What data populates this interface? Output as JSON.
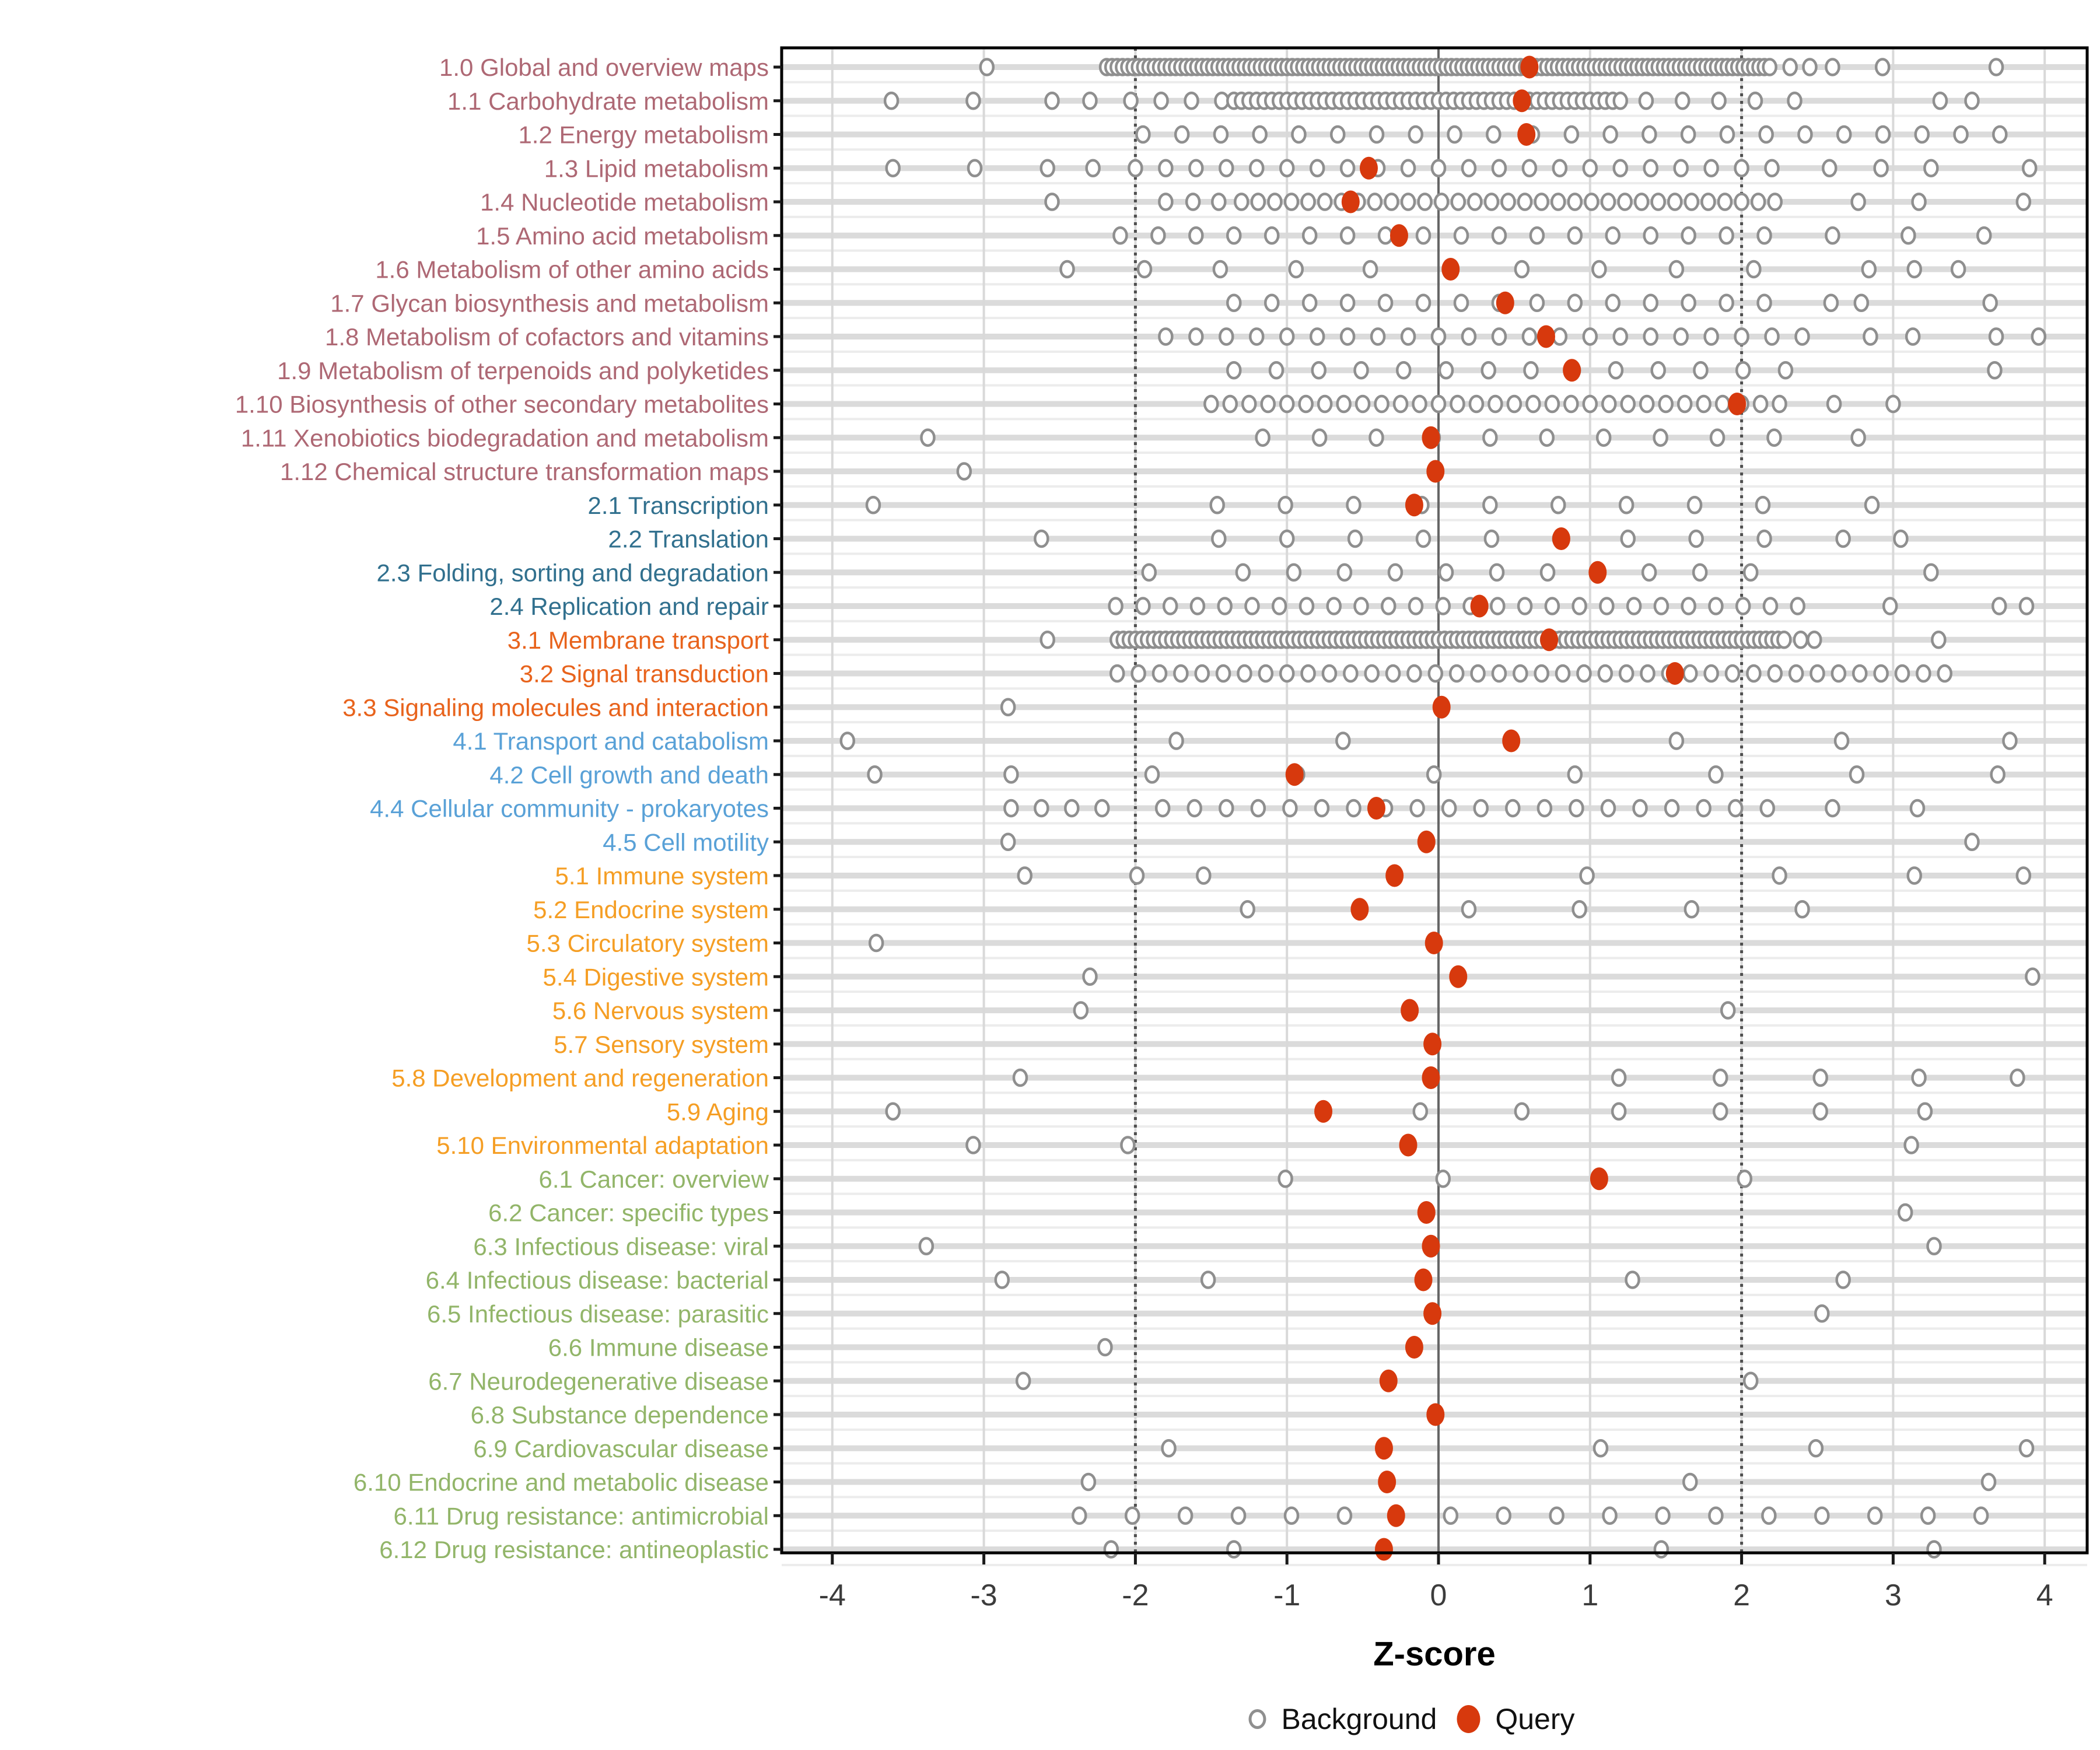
{
  "axis": {
    "xlabel": "Z-score"
  },
  "legend": {
    "background_label": "Background",
    "query_label": "Query",
    "background_color": "#8F8F8F",
    "query_color": "#D7390D"
  },
  "chart_data": {
    "type": "scatter",
    "title": "",
    "xlabel": "Z-score",
    "ylabel": "",
    "xlim": [
      -4.33,
      4.28
    ],
    "x_ticks": [
      -4,
      -3,
      -2,
      -1,
      0,
      1,
      2,
      3,
      4
    ],
    "grid": "on",
    "legend_position": "bottom",
    "reference_lines": {
      "solid": 0,
      "dotted": [
        -2,
        2
      ]
    },
    "series_legend": [
      {
        "label": "Background",
        "marker": "open-circle",
        "color": "#8F8F8F"
      },
      {
        "label": "Query",
        "marker": "filled-circle",
        "color": "#D7390D"
      }
    ],
    "group_colors": {
      "1": "#AE6874",
      "2": "#31708E",
      "3": "#E8631C",
      "4": "#59A1D7",
      "5": "#F59E24",
      "6": "#92B569"
    },
    "rows": [
      {
        "label": "1.0 Global and overview maps",
        "group": "1",
        "query": 0.6,
        "bg_points": [
          -2.98,
          2.32,
          2.45,
          2.6,
          2.93,
          3.68
        ],
        "bg_ranges": [
          {
            "from": -2.19,
            "to": 2.2,
            "step": 0.035
          }
        ]
      },
      {
        "label": "1.1 Carbohydrate metabolism",
        "group": "1",
        "query": 0.55,
        "bg_points": [
          -3.61,
          -3.07,
          -2.55,
          -2.3,
          1.37,
          1.61,
          1.85,
          2.09,
          2.35,
          3.31,
          3.52
        ],
        "bg_ranges": [
          {
            "from": -2.03,
            "to": -1.43,
            "step": 0.2
          },
          {
            "from": -1.35,
            "to": 1.2,
            "step": 0.05
          }
        ]
      },
      {
        "label": "1.2 Energy metabolism",
        "group": "1",
        "query": 0.58,
        "bg_points": [],
        "bg_ranges": [
          {
            "from": -1.95,
            "to": 3.94,
            "step": 0.257
          }
        ]
      },
      {
        "label": "1.3 Lipid metabolism",
        "group": "1",
        "query": -0.46,
        "bg_points": [
          -3.6,
          -3.06,
          -2.58,
          -2.28,
          2.58,
          2.92,
          3.25,
          3.9
        ],
        "bg_ranges": [
          {
            "from": -2.0,
            "to": 2.37,
            "step": 0.2
          }
        ]
      },
      {
        "label": "1.4 Nucleotide metabolism",
        "group": "1",
        "query": -0.58,
        "bg_points": [
          -2.55,
          -1.8,
          -1.62,
          -1.45,
          2.77,
          3.17,
          3.86
        ],
        "bg_ranges": [
          {
            "from": -1.3,
            "to": 2.3,
            "step": 0.11
          }
        ]
      },
      {
        "label": "1.5 Amino acid metabolism",
        "group": "1",
        "query": -0.26,
        "bg_points": [
          2.6,
          3.1,
          3.6
        ],
        "bg_ranges": [
          {
            "from": -2.1,
            "to": 2.3,
            "step": 0.25
          }
        ]
      },
      {
        "label": "1.6 Metabolism of other amino acids",
        "group": "1",
        "query": 0.08,
        "bg_points": [
          -2.45,
          -1.94,
          -1.44,
          -0.94,
          -0.45,
          0.55,
          1.06,
          1.57,
          2.08,
          2.84,
          3.14,
          3.43
        ],
        "bg_ranges": []
      },
      {
        "label": "1.7 Glycan biosynthesis and metabolism",
        "group": "1",
        "query": 0.44,
        "bg_points": [
          2.59,
          2.79,
          3.64
        ],
        "bg_ranges": [
          {
            "from": -1.35,
            "to": 2.2,
            "step": 0.25
          }
        ]
      },
      {
        "label": "1.8 Metabolism of cofactors and vitamins",
        "group": "1",
        "query": 0.71,
        "bg_points": [
          2.85,
          3.13,
          3.68,
          3.96
        ],
        "bg_ranges": [
          {
            "from": -1.8,
            "to": 2.5,
            "step": 0.2
          }
        ]
      },
      {
        "label": "1.9 Metabolism of terpenoids and polyketides",
        "group": "1",
        "query": 0.88,
        "bg_points": [
          3.67
        ],
        "bg_ranges": [
          {
            "from": -1.35,
            "to": 2.51,
            "step": 0.28
          }
        ]
      },
      {
        "label": "1.10 Biosynthesis of other secondary metabolites",
        "group": "1",
        "query": 1.97,
        "bg_points": [
          2.61,
          3.0
        ],
        "bg_ranges": [
          {
            "from": -1.5,
            "to": 2.3,
            "step": 0.125
          }
        ]
      },
      {
        "label": "1.11 Xenobiotics biodegradation and metabolism",
        "group": "1",
        "query": -0.05,
        "bg_points": [
          -3.37,
          2.77
        ],
        "bg_ranges": [
          {
            "from": -1.16,
            "to": 2.22,
            "step": 0.375
          }
        ]
      },
      {
        "label": "1.12 Chemical structure transformation maps",
        "group": "1",
        "query": -0.02,
        "bg_points": [
          -3.13
        ],
        "bg_ranges": []
      },
      {
        "label": "2.1 Transcription",
        "group": "2",
        "query": -0.16,
        "bg_points": [
          -3.73,
          2.86
        ],
        "bg_ranges": [
          {
            "from": -1.46,
            "to": 2.14,
            "step": 0.45
          }
        ]
      },
      {
        "label": "2.2 Translation",
        "group": "2",
        "query": 0.81,
        "bg_points": [
          -2.62,
          2.67,
          3.05
        ],
        "bg_ranges": [
          {
            "from": -1.45,
            "to": 2.15,
            "step": 0.45
          }
        ]
      },
      {
        "label": "2.3 Folding, sorting and degradation",
        "group": "2",
        "query": 1.05,
        "bg_points": [
          -1.91,
          3.25
        ],
        "bg_ranges": [
          {
            "from": -1.29,
            "to": 2.39,
            "step": 0.335
          }
        ]
      },
      {
        "label": "2.4 Replication and repair",
        "group": "2",
        "query": 0.27,
        "bg_points": [
          2.98,
          3.7,
          3.88
        ],
        "bg_ranges": [
          {
            "from": -2.13,
            "to": 2.4,
            "step": 0.18
          }
        ]
      },
      {
        "label": "3.1 Membrane transport",
        "group": "3",
        "query": 0.73,
        "bg_points": [
          -2.58,
          2.39,
          2.48,
          3.3
        ],
        "bg_ranges": [
          {
            "from": -2.12,
            "to": 2.3,
            "step": 0.04
          }
        ]
      },
      {
        "label": "3.2 Signal transduction",
        "group": "3",
        "query": 1.56,
        "bg_points": [],
        "bg_ranges": [
          {
            "from": -2.12,
            "to": 3.4,
            "step": 0.14
          }
        ]
      },
      {
        "label": "3.3 Signaling molecules and interaction",
        "group": "3",
        "query": 0.02,
        "bg_points": [
          -2.84
        ],
        "bg_ranges": []
      },
      {
        "label": "4.1 Transport and catabolism",
        "group": "4",
        "query": 0.48,
        "bg_points": [
          -3.9,
          -1.73,
          -0.63,
          1.57,
          2.66,
          3.77
        ],
        "bg_ranges": []
      },
      {
        "label": "4.2 Cell growth and death",
        "group": "4",
        "query": -0.95,
        "bg_points": [
          -3.72,
          -2.82,
          -1.89,
          -0.93,
          -0.03,
          0.9,
          1.83,
          2.76,
          3.69
        ],
        "bg_ranges": []
      },
      {
        "label": "4.4 Cellular community - prokaryotes",
        "group": "4",
        "query": -0.41,
        "bg_points": [
          2.6,
          3.16
        ],
        "bg_ranges": [
          {
            "from": -2.82,
            "to": -2.22,
            "step": 0.2
          },
          {
            "from": -1.82,
            "to": 2.3,
            "step": 0.21
          }
        ]
      },
      {
        "label": "4.5 Cell motility",
        "group": "4",
        "query": -0.08,
        "bg_points": [
          -2.84,
          3.52
        ],
        "bg_ranges": []
      },
      {
        "label": "5.1 Immune system",
        "group": "5",
        "query": -0.29,
        "bg_points": [
          -2.73,
          -1.99,
          -1.55,
          0.98,
          2.25,
          3.14,
          3.86
        ],
        "bg_ranges": []
      },
      {
        "label": "5.2 Endocrine system",
        "group": "5",
        "query": -0.52,
        "bg_points": [
          -1.26,
          0.2,
          0.93,
          1.67,
          2.4
        ],
        "bg_ranges": []
      },
      {
        "label": "5.3 Circulatory system",
        "group": "5",
        "query": -0.03,
        "bg_points": [
          -3.71
        ],
        "bg_ranges": []
      },
      {
        "label": "5.4 Digestive system",
        "group": "5",
        "query": 0.13,
        "bg_points": [
          -2.3,
          3.92
        ],
        "bg_ranges": []
      },
      {
        "label": "5.6 Nervous system",
        "group": "5",
        "query": -0.19,
        "bg_points": [
          -2.36,
          1.91
        ],
        "bg_ranges": []
      },
      {
        "label": "5.7 Sensory system",
        "group": "5",
        "query": -0.04,
        "bg_points": [],
        "bg_ranges": []
      },
      {
        "label": "5.8 Development and regeneration",
        "group": "5",
        "query": -0.05,
        "bg_points": [
          -2.76,
          1.19,
          1.86,
          2.52,
          3.17,
          3.82
        ],
        "bg_ranges": []
      },
      {
        "label": "5.9 Aging",
        "group": "5",
        "query": -0.76,
        "bg_points": [
          -3.6,
          -0.12,
          0.55,
          1.19,
          1.86,
          2.52,
          3.21
        ],
        "bg_ranges": []
      },
      {
        "label": "5.10 Environmental adaptation",
        "group": "5",
        "query": -0.2,
        "bg_points": [
          -3.07,
          -2.05,
          3.12
        ],
        "bg_ranges": []
      },
      {
        "label": "6.1 Cancer: overview",
        "group": "6",
        "query": 1.06,
        "bg_points": [
          -1.01,
          0.03,
          2.02
        ],
        "bg_ranges": []
      },
      {
        "label": "6.2 Cancer: specific types",
        "group": "6",
        "query": -0.08,
        "bg_points": [
          3.08
        ],
        "bg_ranges": []
      },
      {
        "label": "6.3 Infectious disease: viral",
        "group": "6",
        "query": -0.05,
        "bg_points": [
          -3.38,
          3.27
        ],
        "bg_ranges": []
      },
      {
        "label": "6.4 Infectious disease: bacterial",
        "group": "6",
        "query": -0.1,
        "bg_points": [
          -2.88,
          -1.52,
          1.28,
          2.67
        ],
        "bg_ranges": []
      },
      {
        "label": "6.5 Infectious disease: parasitic",
        "group": "6",
        "query": -0.04,
        "bg_points": [
          2.53
        ],
        "bg_ranges": []
      },
      {
        "label": "6.6 Immune disease",
        "group": "6",
        "query": -0.16,
        "bg_points": [
          -2.2
        ],
        "bg_ranges": []
      },
      {
        "label": "6.7 Neurodegenerative disease",
        "group": "6",
        "query": -0.33,
        "bg_points": [
          -2.74,
          2.06
        ],
        "bg_ranges": []
      },
      {
        "label": "6.8 Substance dependence",
        "group": "6",
        "query": -0.02,
        "bg_points": [],
        "bg_ranges": []
      },
      {
        "label": "6.9 Cardiovascular disease",
        "group": "6",
        "query": -0.36,
        "bg_points": [
          -1.78,
          1.07,
          2.49,
          3.88
        ],
        "bg_ranges": []
      },
      {
        "label": "6.10 Endocrine and metabolic disease",
        "group": "6",
        "query": -0.34,
        "bg_points": [
          -2.31,
          1.66,
          3.63
        ],
        "bg_ranges": []
      },
      {
        "label": "6.11 Drug resistance: antimicrobial",
        "group": "6",
        "query": -0.28,
        "bg_points": [],
        "bg_ranges": [
          {
            "from": -2.37,
            "to": -0.62,
            "step": 0.35
          },
          {
            "from": 0.08,
            "to": 3.92,
            "step": 0.35
          }
        ]
      },
      {
        "label": "6.12 Drug resistance: antineoplastic",
        "group": "6",
        "query": -0.36,
        "bg_points": [
          -2.16,
          -1.35,
          1.47,
          3.27
        ],
        "bg_ranges": []
      }
    ]
  }
}
